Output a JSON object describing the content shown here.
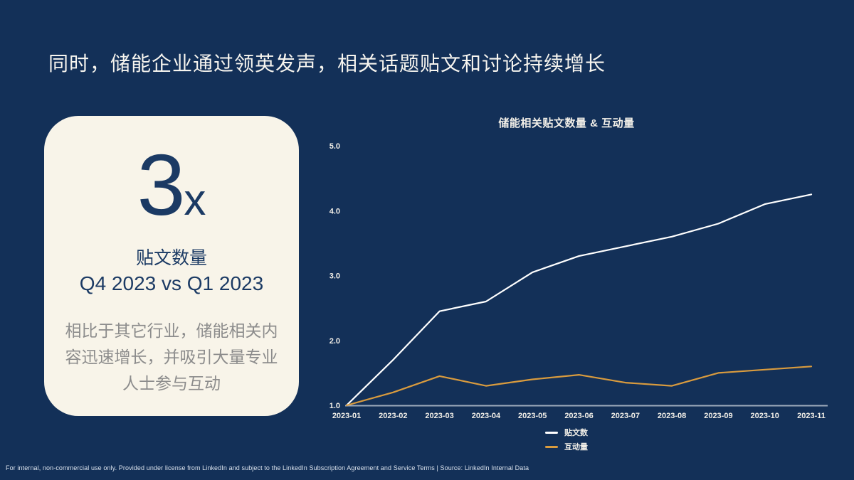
{
  "slide": {
    "title": "同时，储能企业通过领英发声，相关话题贴文和讨论持续增长",
    "footer": "For internal, non-commercial use only.  Provided under license from LinkedIn and subject to the LinkedIn Subscription Agreement and Service Terms | Source: LinkedIn Internal Data"
  },
  "highlight_card": {
    "stat_value": "3",
    "stat_suffix": "x",
    "stat_label": "贴文数量",
    "stat_sublabel": "Q4 2023 vs Q1 2023",
    "description": "相比于其它行业，储能相关内容迅速增长，并吸引大量专业人士参与互动"
  },
  "colors": {
    "background": "#133058",
    "card_background": "#F8F4E9",
    "navy_text": "#1B3A64",
    "gray_text": "#8C8C8C",
    "axis_line": "#9FABBC",
    "posts_line": "#FFFFFF",
    "engagement_line": "#D99B3E"
  },
  "chart_data": {
    "type": "line",
    "title": "储能相关贴文数量 & 互动量",
    "categories": [
      "2023-01",
      "2023-02",
      "2023-03",
      "2023-04",
      "2023-05",
      "2023-06",
      "2023-07",
      "2023-08",
      "2023-09",
      "2023-10",
      "2023-11"
    ],
    "series": [
      {
        "name": "贴文数",
        "color": "#FFFFFF",
        "values": [
          1.0,
          1.7,
          2.45,
          2.6,
          3.05,
          3.3,
          3.45,
          3.6,
          3.8,
          4.1,
          4.25
        ]
      },
      {
        "name": "互动量",
        "color": "#D99B3E",
        "values": [
          1.0,
          1.2,
          1.45,
          1.3,
          1.4,
          1.47,
          1.35,
          1.3,
          1.5,
          1.55,
          1.6
        ]
      }
    ],
    "xlabel": "",
    "ylabel": "",
    "ylim": [
      1.0,
      5.0
    ],
    "yticks": [
      1.0,
      2.0,
      3.0,
      4.0,
      5.0
    ],
    "grid": false,
    "legend_position": "bottom"
  }
}
